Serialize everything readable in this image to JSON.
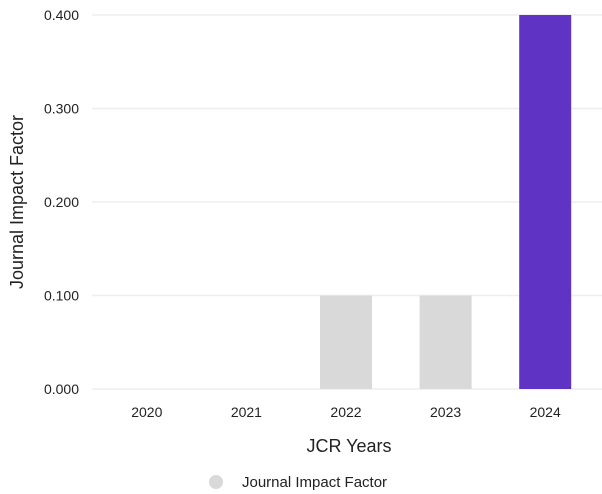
{
  "chart_data": {
    "type": "bar",
    "categories": [
      "2020",
      "2021",
      "2022",
      "2023",
      "2024"
    ],
    "series": [
      {
        "name": "Journal Impact Factor",
        "values": [
          0.0,
          0.0,
          0.1,
          0.1,
          0.4
        ]
      }
    ],
    "xlabel": "JCR Years",
    "ylabel": "Journal Impact Factor",
    "ylim": [
      0,
      0.4
    ],
    "yticks": [
      "0.000",
      "0.100",
      "0.200",
      "0.300",
      "0.400"
    ],
    "yticks_values": [
      0,
      0.1,
      0.2,
      0.3,
      0.4
    ],
    "grid": true,
    "legend": "bottom-center",
    "colors": {
      "default_bar": "#d9d9d9",
      "highlight_bar": "#5f34c4",
      "grid": "#eeeeee",
      "legend_marker": "#d9d9d9"
    },
    "highlight_category": "2024"
  }
}
